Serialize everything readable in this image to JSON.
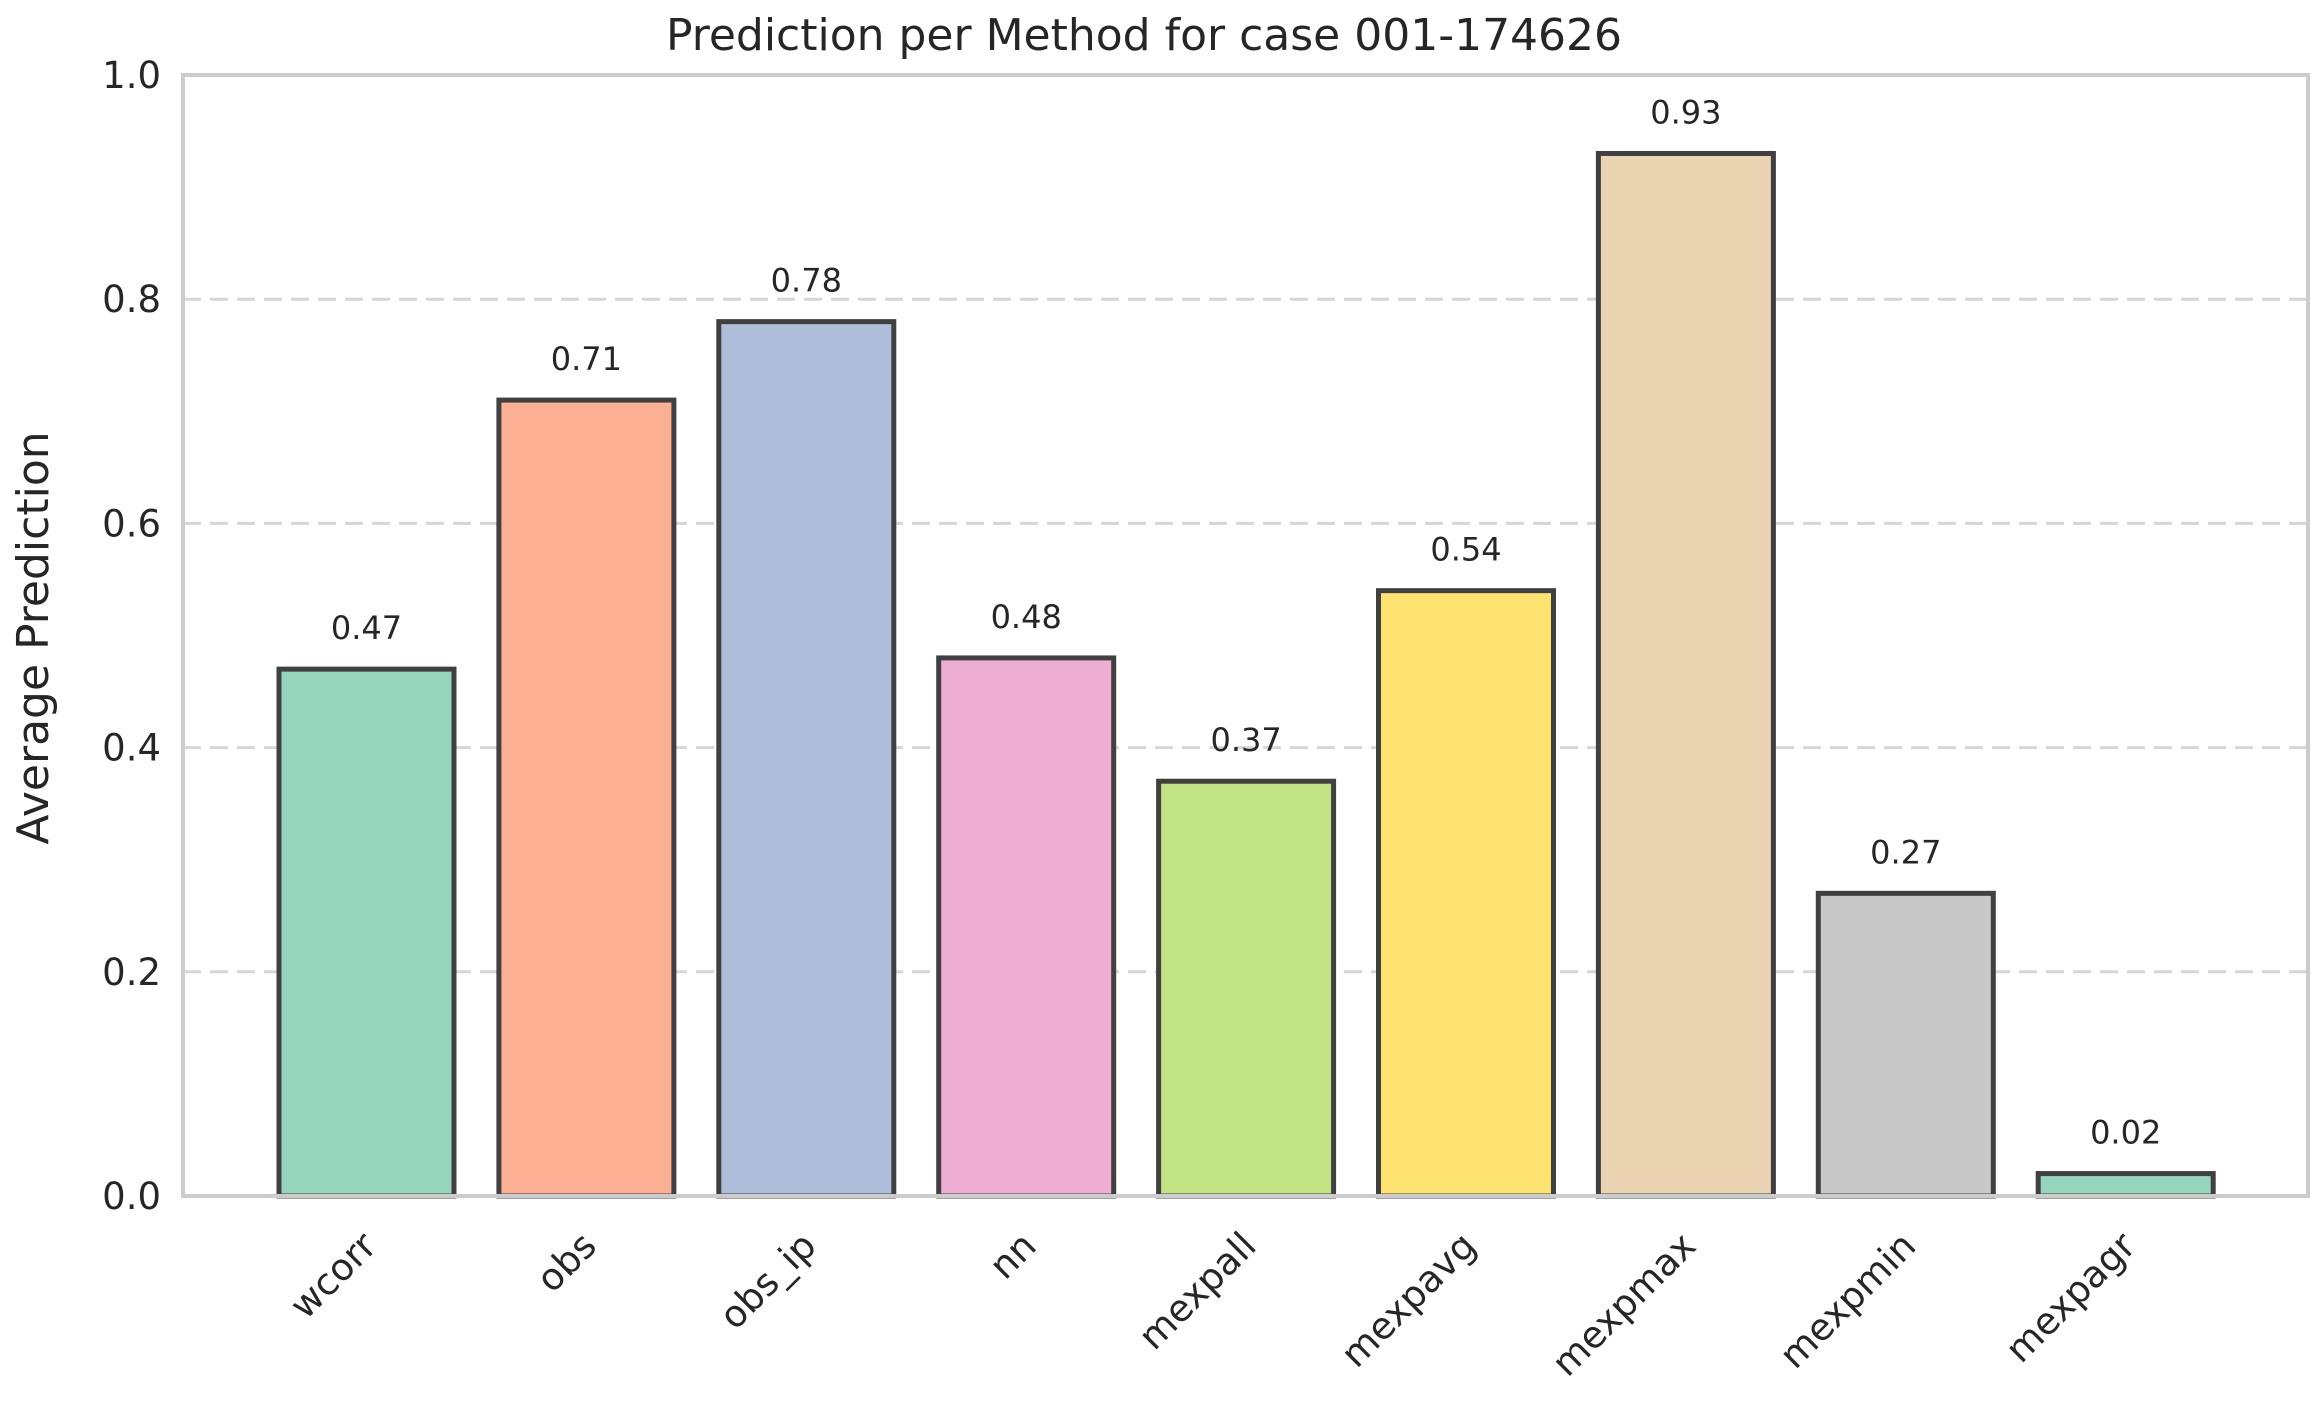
{
  "chart_data": {
    "type": "bar",
    "title": "Prediction per Method for case 001-174626",
    "xlabel": "",
    "ylabel": "Average Prediction",
    "ylim": [
      0,
      1.0
    ],
    "yticks": [
      "0.0",
      "0.2",
      "0.4",
      "0.6",
      "0.8",
      "1.0"
    ],
    "grid": "y dashed",
    "categories": [
      "wcorr",
      "obs",
      "obs_ip",
      "nn",
      "mexpall",
      "mexpavg",
      "mexpmax",
      "mexpmin",
      "mexpagr"
    ],
    "values": [
      0.47,
      0.71,
      0.78,
      0.48,
      0.37,
      0.54,
      0.93,
      0.27,
      0.02
    ],
    "value_labels": [
      "0.47",
      "0.71",
      "0.78",
      "0.48",
      "0.37",
      "0.54",
      "0.93",
      "0.27",
      "0.02"
    ],
    "colors": [
      "#95d4bd",
      "#fbb093",
      "#aebdd9",
      "#eeadd3",
      "#c2e383",
      "#ffe370",
      "#ebd4b2",
      "#c8c8c8",
      "#95d4bd"
    ]
  }
}
